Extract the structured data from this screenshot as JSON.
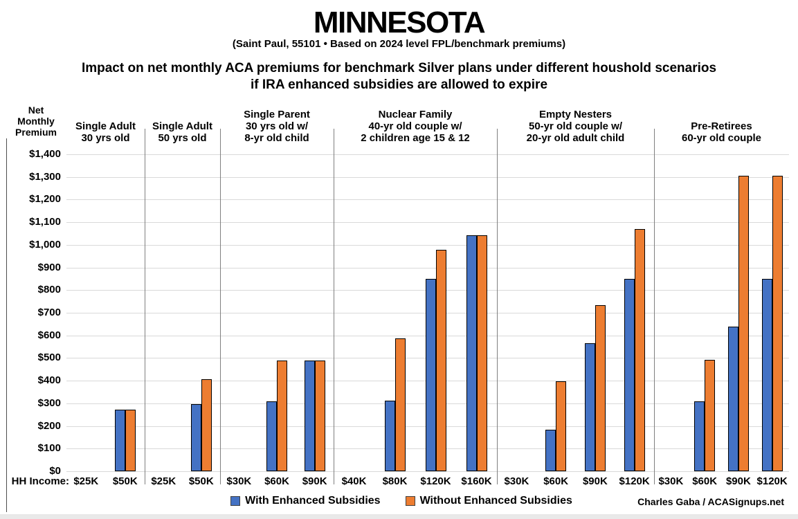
{
  "title": "MINNESOTA",
  "subtitle": "(Saint Paul, 55101 • Based on 2024 level FPL/benchmark premiums)",
  "heading_line1": "Impact on net monthly ACA premiums for benchmark Silver plans under different houshold scenarios",
  "heading_line2": "if IRA enhanced subsidies are allowed to expire",
  "y_axis_title_lines": [
    "Net",
    "Monthly",
    "Premium"
  ],
  "hh_income_label": "HH Income:",
  "credit": "Charles Gaba / ACASignups.net",
  "colors": {
    "with_subsidies": "#4472C4",
    "without_subsidies": "#ED7D31",
    "bar_border": "#000000",
    "gridline": "#D9D9D9",
    "separator": "#7F7F7F"
  },
  "legend": [
    {
      "label": "With Enhanced Subsidies",
      "color": "#4472C4"
    },
    {
      "label": "Without Enhanced Subsidies",
      "color": "#ED7D31"
    }
  ],
  "chart_data": {
    "type": "bar",
    "title": "MINNESOTA — Impact on net monthly ACA premiums for benchmark Silver plans under different houshold scenarios if IRA enhanced subsidies are allowed to expire",
    "xlabel": "HH Income:",
    "ylabel": "Net Monthly Premium",
    "ylim": [
      0,
      1400
    ],
    "ytick_step": 100,
    "ytick_prefix": "$",
    "grid": true,
    "legend_position": "bottom",
    "series_names": [
      "With Enhanced Subsidies",
      "Without Enhanced Subsidies"
    ],
    "groups": [
      {
        "label_lines": [
          "Single Adult",
          "30 yrs old"
        ],
        "incomes": [
          "$25K",
          "$50K"
        ],
        "with_enhanced": [
          0,
          272
        ],
        "without_enhanced": [
          0,
          272
        ]
      },
      {
        "label_lines": [
          "Single Adult",
          "50 yrs old"
        ],
        "incomes": [
          "$25K",
          "$50K"
        ],
        "with_enhanced": [
          0,
          296
        ],
        "without_enhanced": [
          0,
          408
        ]
      },
      {
        "label_lines": [
          "Single Parent",
          "30 yrs old w/",
          "8-yr old child"
        ],
        "incomes": [
          "$30K",
          "$60K",
          "$90K"
        ],
        "with_enhanced": [
          0,
          310,
          489
        ],
        "without_enhanced": [
          0,
          489,
          489
        ]
      },
      {
        "label_lines": [
          "Nuclear Family",
          "40-yr old couple w/",
          "2 children age 15 & 12"
        ],
        "incomes": [
          "$40K",
          "$80K",
          "$120K",
          "$160K"
        ],
        "with_enhanced": [
          0,
          313,
          850,
          1043
        ],
        "without_enhanced": [
          0,
          588,
          979,
          1043
        ]
      },
      {
        "label_lines": [
          "Empty Nesters",
          "50-yr old couple w/",
          "20-yr old adult child"
        ],
        "incomes": [
          "$30K",
          "$60K",
          "$90K",
          "$120K"
        ],
        "with_enhanced": [
          0,
          183,
          566,
          850
        ],
        "without_enhanced": [
          0,
          396,
          734,
          1071
        ]
      },
      {
        "label_lines": [
          "Pre-Retirees",
          "60-yr old couple"
        ],
        "incomes": [
          "$30K",
          "$60K",
          "$90K",
          "$120K"
        ],
        "with_enhanced": [
          0,
          308,
          638,
          850
        ],
        "without_enhanced": [
          0,
          491,
          1305,
          1305
        ]
      }
    ]
  }
}
